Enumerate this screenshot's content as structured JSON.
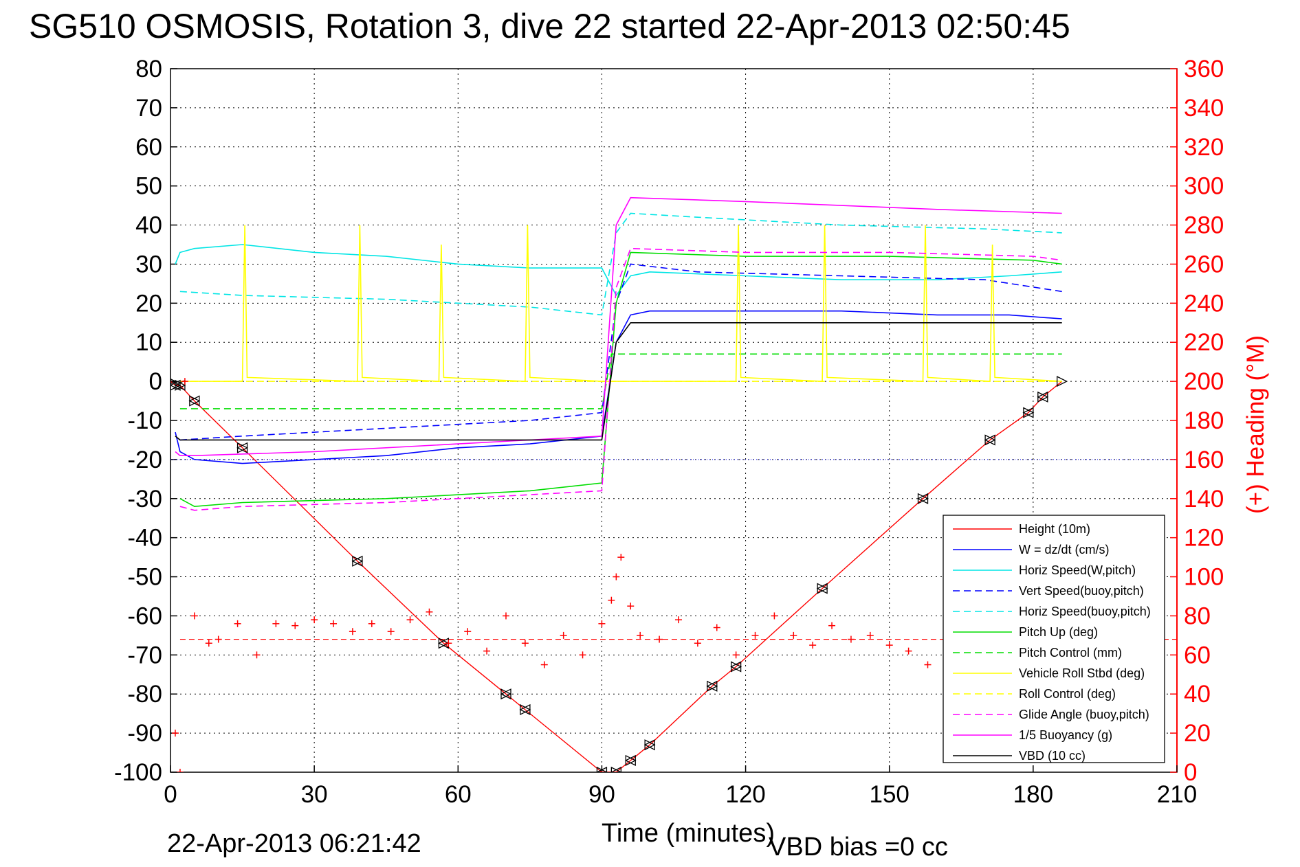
{
  "chart_data": {
    "type": "line",
    "title": "SG510 OSMOSIS, Rotation 3, dive 22 started 22-Apr-2013 02:50:45",
    "xlabel": "Time (minutes)",
    "ylabel_right": "(+) Heading (°M)",
    "footer_date": "22-Apr-2013 06:21:42",
    "footer_note": "VBD bias =0 cc",
    "xlim": [
      0,
      210
    ],
    "ylim": [
      -100,
      80
    ],
    "ylim_right": [
      0,
      360
    ],
    "x_ticks": [
      0,
      30,
      60,
      90,
      120,
      150,
      180,
      210
    ],
    "y_ticks": [
      80,
      70,
      60,
      50,
      40,
      30,
      20,
      10,
      0,
      -10,
      -20,
      -30,
      -40,
      -50,
      -60,
      -70,
      -80,
      -90,
      -100
    ],
    "y_right_ticks": [
      360,
      340,
      320,
      300,
      280,
      260,
      240,
      220,
      200,
      180,
      160,
      140,
      120,
      100,
      80,
      60,
      40,
      20,
      0
    ],
    "grid": true,
    "legend_position": "lower-right",
    "series": [
      {
        "name": "Height (10m)",
        "color": "#ff0000",
        "style": "solid",
        "x": [
          0,
          1,
          2,
          5,
          15,
          39,
          57,
          70,
          74,
          90,
          93,
          96,
          100,
          113,
          118,
          136,
          157,
          171,
          179,
          182,
          186
        ],
        "y": [
          0,
          -1,
          -1,
          -5,
          -17,
          -46,
          -67,
          -80,
          -84,
          -100,
          -100,
          -97,
          -93,
          -78,
          -73,
          -53,
          -30,
          -15,
          -8,
          -4,
          0
        ]
      },
      {
        "name": "W = dz/dt (cm/s)",
        "color": "#0000ff",
        "style": "solid",
        "x": [
          1,
          2,
          5,
          15,
          30,
          45,
          60,
          75,
          90,
          93,
          96,
          100,
          120,
          140,
          160,
          175,
          186
        ],
        "y": [
          -13,
          -18,
          -20,
          -21,
          -20,
          -19,
          -17,
          -16,
          -14,
          10,
          17,
          18,
          18,
          18,
          17,
          17,
          16
        ]
      },
      {
        "name": "Horiz Speed(W,pitch)",
        "color": "#00e5e5",
        "style": "solid",
        "x": [
          1,
          2,
          5,
          15,
          30,
          45,
          60,
          75,
          90,
          93,
          96,
          100,
          120,
          140,
          160,
          175,
          186
        ],
        "y": [
          30,
          33,
          34,
          35,
          33,
          32,
          30,
          29,
          29,
          22,
          27,
          28,
          27,
          26,
          26,
          27,
          28
        ]
      },
      {
        "name": "Vert Speed(buoy,pitch)",
        "color": "#0000ff",
        "style": "dashed",
        "x": [
          2,
          15,
          45,
          75,
          90,
          93,
          96,
          110,
          140,
          170,
          186
        ],
        "y": [
          -15,
          -14,
          -12,
          -10,
          -8,
          20,
          30,
          28,
          27,
          26,
          23
        ]
      },
      {
        "name": "Horiz Speed(buoy,pitch)",
        "color": "#00e5e5",
        "style": "dashed",
        "x": [
          2,
          15,
          45,
          75,
          90,
          93,
          96,
          110,
          140,
          170,
          186
        ],
        "y": [
          23,
          22,
          21,
          19,
          17,
          38,
          43,
          42,
          40,
          39,
          38
        ]
      },
      {
        "name": "Pitch Up (deg)",
        "color": "#00dd00",
        "style": "solid",
        "x": [
          2,
          5,
          15,
          45,
          75,
          90,
          93,
          96,
          120,
          150,
          180,
          186
        ],
        "y": [
          -30,
          -32,
          -31,
          -30,
          -28,
          -26,
          20,
          33,
          32,
          32,
          31,
          30
        ]
      },
      {
        "name": "Pitch Control (mm)",
        "color": "#00dd00",
        "style": "dashed",
        "x": [
          2,
          90,
          92,
          186
        ],
        "y": [
          -7,
          -7,
          7,
          7
        ]
      },
      {
        "name": "Vehicle Roll Stbd (deg)",
        "color": "#ffff00",
        "style": "solid",
        "x": [
          2,
          15,
          15.5,
          16,
          39,
          39.5,
          40,
          56,
          56.5,
          57,
          74,
          74.5,
          75,
          90,
          93,
          100,
          118,
          118.5,
          119,
          136,
          136.5,
          137,
          157,
          157.5,
          158,
          171,
          171.5,
          172,
          186
        ],
        "y": [
          0,
          0,
          40,
          1,
          0,
          40,
          1,
          0,
          35,
          1,
          0,
          40,
          1,
          0,
          0,
          0,
          0,
          40,
          1,
          0,
          40,
          1,
          0,
          40,
          1,
          0,
          35,
          1,
          0
        ]
      },
      {
        "name": "Roll Control (deg)",
        "color": "#ffff00",
        "style": "dashed",
        "x": [
          2,
          90,
          186
        ],
        "y": [
          0,
          0,
          0
        ]
      },
      {
        "name": "Glide Angle (buoy,pitch)",
        "color": "#ff00ff",
        "style": "dashed",
        "x": [
          2,
          5,
          15,
          45,
          75,
          90,
          93,
          96,
          120,
          150,
          180,
          186
        ],
        "y": [
          -32,
          -33,
          -32,
          -31,
          -29,
          -28,
          24,
          34,
          33,
          33,
          32,
          31
        ]
      },
      {
        "name": "1/5 Buoyancy (g)",
        "color": "#ff00ff",
        "style": "solid",
        "x": [
          1,
          2,
          5,
          30,
          60,
          90,
          93,
          96,
          120,
          140,
          160,
          186
        ],
        "y": [
          -18,
          -19,
          -19,
          -18,
          -16,
          -14,
          40,
          47,
          46,
          45,
          44,
          43
        ]
      },
      {
        "name": "VBD (10 cc)",
        "color": "#000000",
        "style": "solid",
        "x": [
          1,
          2,
          90,
          93,
          96,
          186
        ],
        "y": [
          -14,
          -15,
          -15,
          10,
          15,
          15
        ]
      }
    ],
    "heading_series": {
      "color": "#ff0000",
      "marker": "+",
      "axis": "right",
      "x": [
        1,
        2,
        3,
        5,
        8,
        10,
        14,
        18,
        22,
        26,
        30,
        34,
        38,
        42,
        46,
        50,
        54,
        58,
        62,
        66,
        70,
        74,
        78,
        82,
        86,
        90,
        92,
        93,
        94,
        96,
        98,
        102,
        106,
        110,
        114,
        118,
        122,
        126,
        130,
        134,
        138,
        142,
        146,
        150,
        154,
        158,
        162,
        166
      ],
      "y": [
        20,
        0,
        200,
        80,
        66,
        68,
        76,
        60,
        76,
        75,
        78,
        76,
        72,
        76,
        72,
        78,
        82,
        66,
        72,
        62,
        80,
        66,
        55,
        70,
        60,
        76,
        88,
        100,
        110,
        85,
        70,
        68,
        78,
        66,
        74,
        60,
        70,
        80,
        70,
        65,
        75,
        68,
        70,
        65,
        62,
        55,
        70,
        72
      ]
    },
    "heading_mean": 68
  },
  "colors": {
    "axis_left": "#000000",
    "axis_right": "#ff0000",
    "grid": "#000000"
  }
}
